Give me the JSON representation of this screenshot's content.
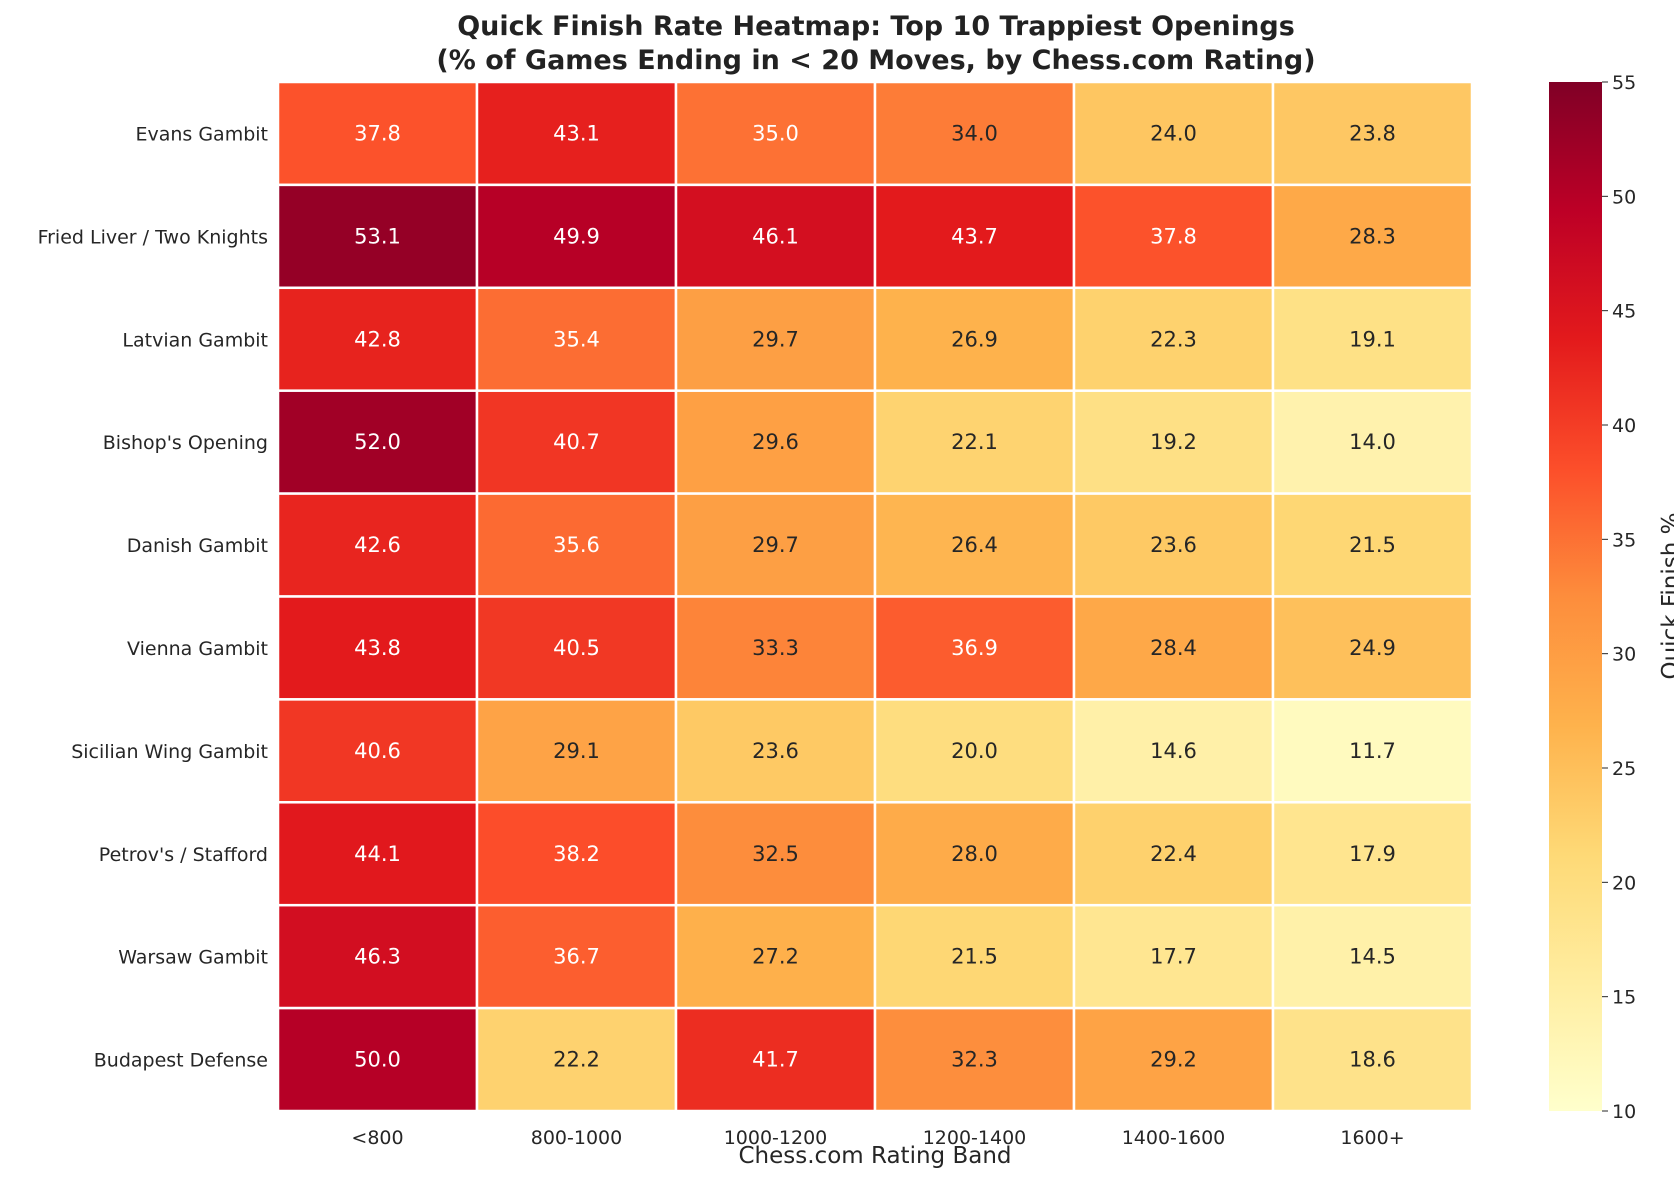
{
  "chart_data": {
    "type": "heatmap",
    "title": "Quick Finish Rate Heatmap: Top 10 Trappiest Openings",
    "subtitle": "(% of Games Ending in < 20 Moves, by Chess.com Rating)",
    "xlabel": "Chess.com Rating Band",
    "ylabel": "",
    "columns": [
      "<800",
      "800-1000",
      "1000-1200",
      "1200-1400",
      "1400-1600",
      "1600+"
    ],
    "rows": [
      "Evans Gambit",
      "Fried Liver / Two Knights",
      "Latvian Gambit",
      "Bishop's Opening",
      "Danish Gambit",
      "Vienna Gambit",
      "Sicilian Wing Gambit",
      "Petrov's / Stafford",
      "Warsaw Gambit",
      "Budapest Defense"
    ],
    "values": [
      [
        37.8,
        43.1,
        35.0,
        34.0,
        24.0,
        23.8
      ],
      [
        53.1,
        49.9,
        46.1,
        43.7,
        37.8,
        28.3
      ],
      [
        42.8,
        35.4,
        29.7,
        26.9,
        22.3,
        19.1
      ],
      [
        52.0,
        40.7,
        29.6,
        22.1,
        19.2,
        14.0
      ],
      [
        42.6,
        35.6,
        29.7,
        26.4,
        23.6,
        21.5
      ],
      [
        43.8,
        40.5,
        33.3,
        36.9,
        28.4,
        24.9
      ],
      [
        40.6,
        29.1,
        23.6,
        20.0,
        14.6,
        11.7
      ],
      [
        44.1,
        38.2,
        32.5,
        28.0,
        22.4,
        17.9
      ],
      [
        46.3,
        36.7,
        27.2,
        21.5,
        17.7,
        14.5
      ],
      [
        50.0,
        22.2,
        41.7,
        32.3,
        29.2,
        18.6
      ]
    ],
    "colorbar": {
      "label": "Quick Finish %",
      "range": [
        10,
        55
      ],
      "ticks": [
        10,
        15,
        20,
        25,
        30,
        35,
        40,
        45,
        50,
        55
      ],
      "colormap": "YlOrRd"
    },
    "grid": false,
    "legend": "colorbar-right"
  }
}
